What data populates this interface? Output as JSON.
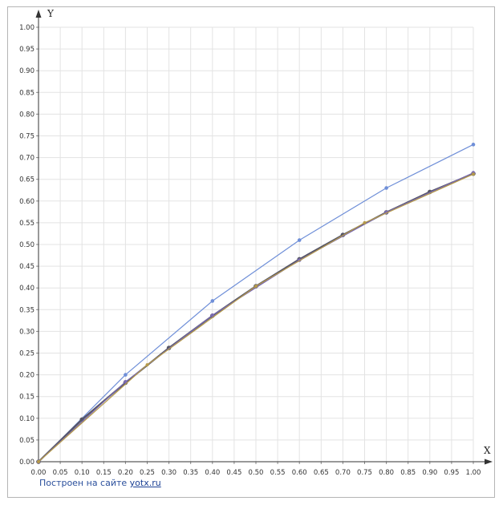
{
  "chart_data": {
    "type": "line",
    "xlabel": "X",
    "ylabel": "Y",
    "xlim": [
      0,
      1
    ],
    "ylim": [
      0,
      1
    ],
    "xticks": [
      "0.00",
      "0.05",
      "0.10",
      "0.15",
      "0.20",
      "0.25",
      "0.30",
      "0.35",
      "0.40",
      "0.45",
      "0.50",
      "0.55",
      "0.60",
      "0.65",
      "0.70",
      "0.75",
      "0.80",
      "0.85",
      "0.90",
      "0.95",
      "1.00"
    ],
    "yticks": [
      "0.00",
      "0.05",
      "0.10",
      "0.15",
      "0.20",
      "0.25",
      "0.30",
      "0.35",
      "0.40",
      "0.45",
      "0.50",
      "0.55",
      "0.60",
      "0.65",
      "0.70",
      "0.75",
      "0.80",
      "0.85",
      "0.90",
      "0.95",
      "1.00"
    ],
    "grid": true,
    "series": [
      {
        "color": "#6f8fd8",
        "x": [
          0,
          0.2,
          0.4,
          0.6,
          0.8,
          1.0
        ],
        "y": [
          0,
          0.2,
          0.37,
          0.51,
          0.63,
          0.73
        ]
      },
      {
        "color": "#555566",
        "x": [
          0,
          0.1,
          0.2,
          0.3,
          0.4,
          0.5,
          0.6,
          0.7,
          0.8,
          0.9,
          1.0
        ],
        "y": [
          0,
          0.097,
          0.182,
          0.262,
          0.336,
          0.404,
          0.466,
          0.522,
          0.574,
          0.621,
          0.663
        ]
      },
      {
        "color": "#7a6bb0",
        "x": [
          0,
          0.2,
          0.4,
          0.6,
          0.8,
          1.0
        ],
        "y": [
          0,
          0.184,
          0.337,
          0.464,
          0.574,
          0.665
        ]
      },
      {
        "color": "#b59a4a",
        "x": [
          0,
          0.25,
          0.5,
          0.75,
          1.0
        ],
        "y": [
          0,
          0.223,
          0.404,
          0.55,
          0.662
        ]
      }
    ]
  },
  "footer": {
    "credit_text": "Построен на сайте ",
    "credit_link": "yotx.ru"
  }
}
